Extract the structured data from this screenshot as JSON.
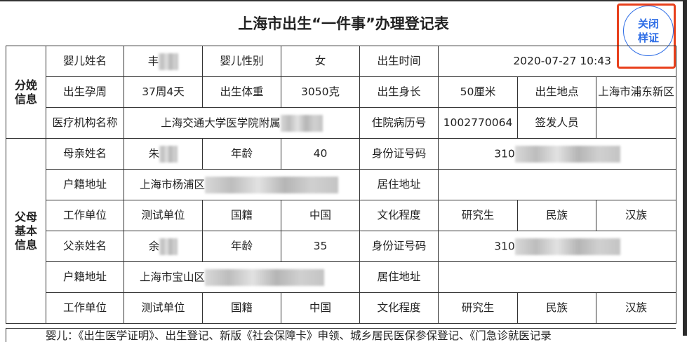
{
  "title": "上海市出生“一件事”办理登记表",
  "close_sample_button": {
    "line1": "关闭",
    "line2": "样证"
  },
  "delivery": {
    "section": "分娩信息",
    "baby_name_label": "婴儿姓名",
    "baby_name": "丰",
    "baby_gender_label": "婴儿性别",
    "baby_gender": "女",
    "birth_time_label": "出生时间",
    "birth_time": "2020-07-27 10:43",
    "gestation_label": "出生孕周",
    "gestation": "37周4天",
    "weight_label": "出生体重",
    "weight": "3050克",
    "length_label": "出生身长",
    "length": "50厘米",
    "birthplace_label": "出生地点",
    "birthplace": "上海市浦东新区",
    "hospital_label": "医疗机构名称",
    "hospital": "上海交通大学医学院附属",
    "record_no_label": "住院病历号",
    "record_no": "1002770064",
    "issuer_label": "签发人员",
    "issuer": ""
  },
  "parents": {
    "section": "父母基本信息",
    "mother": {
      "name_label": "母亲姓名",
      "name": "朱",
      "age_label": "年龄",
      "age": "40",
      "id_label": "身份证号码",
      "id": "310",
      "hukou_label": "户籍地址",
      "hukou": "上海市杨浦区",
      "residence_label": "居住地址",
      "residence": "",
      "work_label": "工作单位",
      "work": "测试单位",
      "nationality_label": "国籍",
      "nationality": "中国",
      "education_label": "文化程度",
      "education": "研究生",
      "ethnicity_label": "民族",
      "ethnicity": "汉族"
    },
    "father": {
      "name_label": "父亲姓名",
      "name": "余",
      "age_label": "年龄",
      "age": "35",
      "id_label": "身份证号码",
      "id": "310",
      "hukou_label": "户籍地址",
      "hukou": "上海市宝山区",
      "residence_label": "居住地址",
      "residence": "",
      "work_label": "工作单位",
      "work": "测试单位",
      "nationality_label": "国籍",
      "nationality": "中国",
      "education_label": "文化程度",
      "education": "研究生",
      "ethnicity_label": "民族",
      "ethnicity": "汉族"
    }
  },
  "footer_note": "婴儿：《出生医学证明》、出生登记、新版《社会保障卡》申领、城乡居民医保参保登记、《门急诊就医记录"
}
